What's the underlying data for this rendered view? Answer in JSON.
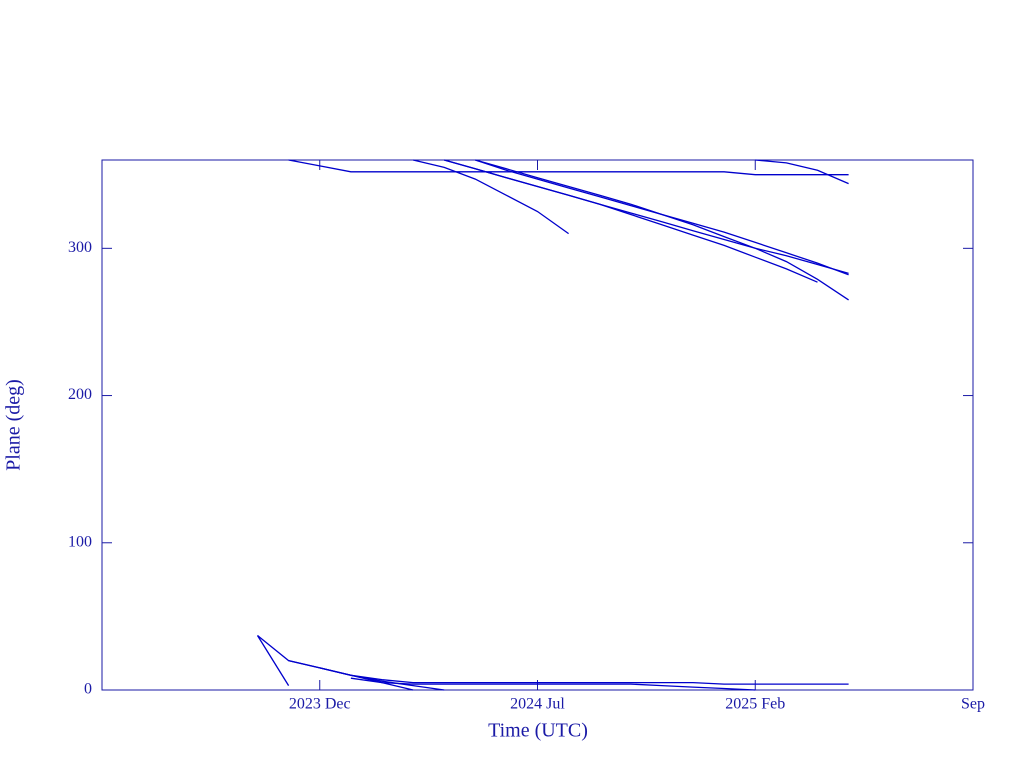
{
  "chart_data": {
    "type": "line",
    "x_label": "Time (UTC)",
    "y_label": "Plane (deg)",
    "color": "#0000cc",
    "x": [
      "2023-10",
      "2023-11",
      "2023-12",
      "2024-01",
      "2024-02",
      "2024-03",
      "2024-04",
      "2024-05",
      "2024-06",
      "2024-07",
      "2024-08",
      "2024-09",
      "2024-10",
      "2024-11",
      "2024-12",
      "2025-01",
      "2025-02",
      "2025-03",
      "2025-04",
      "2025-05"
    ],
    "xlim": [
      "2023-05",
      "2025-09"
    ],
    "xticks": [
      {
        "value": "2023-12",
        "label": "2023 Dec"
      },
      {
        "value": "2024-07",
        "label": "2024 Jul"
      },
      {
        "value": "2025-02",
        "label": "2025 Feb"
      },
      {
        "value": "2025-09",
        "label": "Sep"
      }
    ],
    "ylim": [
      0,
      360
    ],
    "yticks": [
      0,
      100,
      200,
      300
    ],
    "series": [
      {
        "values": [
          null,
          360,
          356,
          352,
          352,
          352,
          352,
          352,
          352,
          352,
          352,
          352,
          352,
          352,
          352,
          352,
          350,
          350,
          350,
          350
        ]
      },
      {
        "values": [
          null,
          null,
          null,
          null,
          null,
          360,
          355,
          347,
          336,
          325,
          310,
          null,
          null,
          null,
          null,
          null,
          null,
          null,
          null,
          null
        ]
      },
      {
        "values": [
          null,
          null,
          null,
          null,
          null,
          null,
          360,
          354,
          348,
          342,
          336,
          330,
          324,
          318,
          312,
          306,
          300,
          295,
          289,
          283
        ]
      },
      {
        "values": [
          null,
          null,
          null,
          null,
          null,
          null,
          null,
          360,
          353,
          347,
          341,
          335,
          329,
          323,
          317,
          311,
          304,
          297,
          290,
          282
        ]
      },
      {
        "values": [
          null,
          null,
          null,
          null,
          null,
          null,
          null,
          360,
          354,
          348,
          342,
          336,
          330,
          323,
          316,
          308,
          300,
          291,
          279,
          265
        ]
      },
      {
        "values": [
          null,
          null,
          null,
          null,
          null,
          null,
          360,
          354,
          348,
          342,
          336,
          330,
          323,
          316,
          309,
          302,
          294,
          286,
          277,
          null
        ]
      },
      {
        "values": [
          null,
          null,
          null,
          null,
          null,
          null,
          null,
          null,
          null,
          null,
          null,
          null,
          null,
          null,
          null,
          null,
          360,
          358,
          353,
          344
        ]
      },
      {
        "values": [
          37,
          20,
          15,
          10,
          7,
          5,
          5,
          5,
          5,
          5,
          5,
          5,
          5,
          5,
          5,
          4,
          4,
          4,
          4,
          4
        ]
      },
      {
        "values": [
          37,
          3,
          null,
          null,
          null,
          null,
          null,
          null,
          null,
          null,
          null,
          null,
          null,
          null,
          null,
          null,
          null,
          null,
          null,
          null
        ]
      },
      {
        "values": [
          null,
          20,
          15,
          10,
          5,
          0,
          null,
          null,
          null,
          null,
          null,
          null,
          null,
          null,
          null,
          null,
          null,
          null,
          null,
          null
        ]
      },
      {
        "values": [
          null,
          null,
          15,
          10,
          6,
          3,
          0,
          null,
          null,
          null,
          null,
          null,
          null,
          null,
          null,
          null,
          null,
          null,
          null,
          null
        ]
      },
      {
        "values": [
          null,
          null,
          null,
          8,
          5,
          4,
          4,
          4,
          4,
          4,
          4,
          4,
          4,
          3,
          2,
          1,
          0,
          null,
          null,
          null
        ]
      }
    ]
  }
}
